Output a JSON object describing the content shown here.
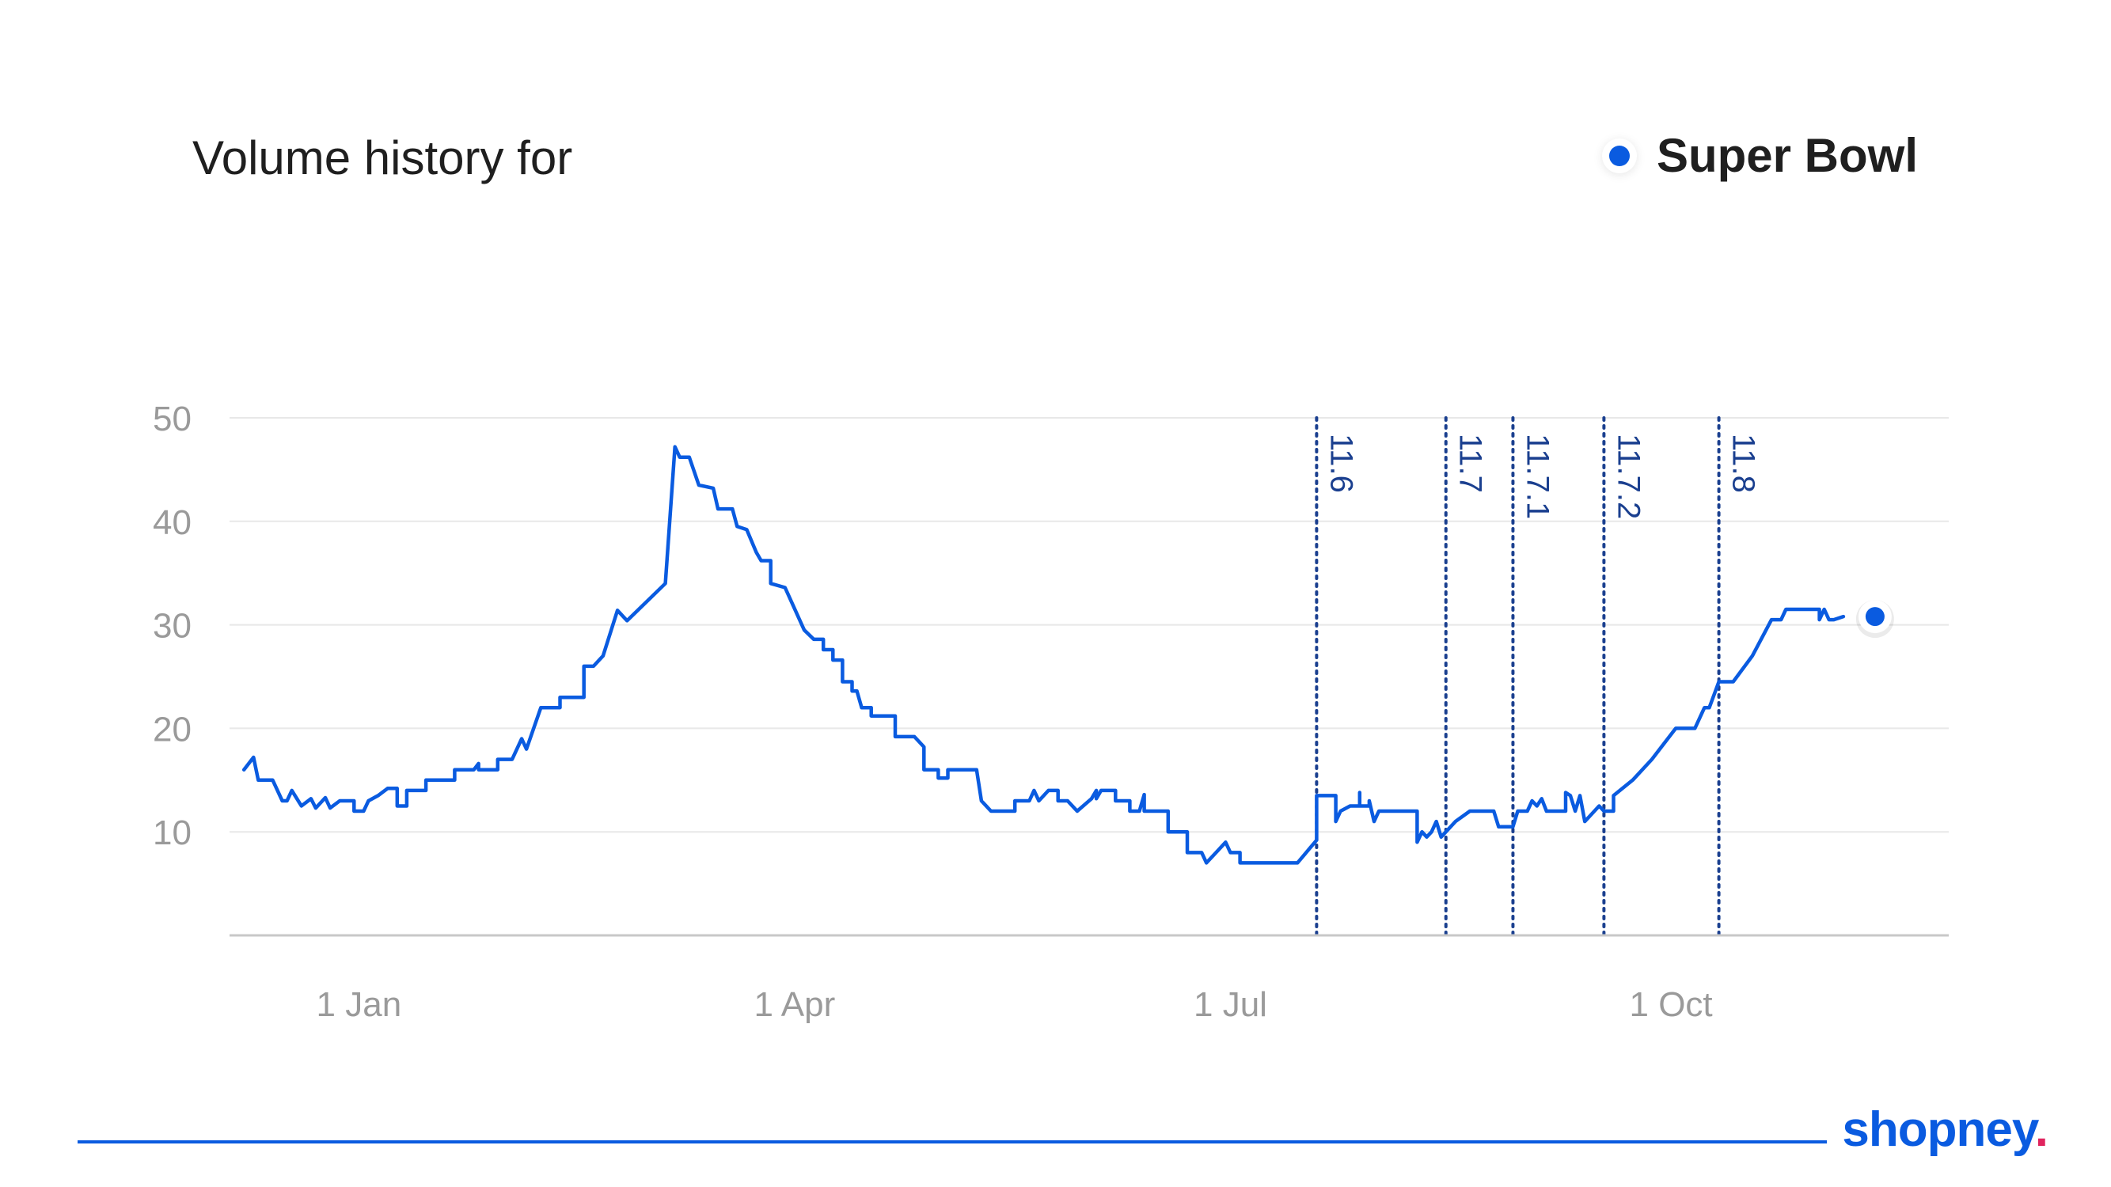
{
  "header": {
    "title": "Volume history for"
  },
  "legend": {
    "label": "Super Bowl",
    "color": "#0a5be0"
  },
  "brand": {
    "name": "shopney",
    "dot": ".",
    "dot_color": "#e0245e"
  },
  "chart_data": {
    "type": "line",
    "title": "Volume history for",
    "xlabel": "",
    "ylabel": "",
    "ylim": [
      0,
      50
    ],
    "y_ticks": [
      10,
      20,
      30,
      40,
      50
    ],
    "grid": true,
    "legend_position": "top-right",
    "x_tick_labels": [
      {
        "label": "1 Jan",
        "date": "2024-01-01"
      },
      {
        "label": "1 Apr",
        "date": "2024-04-01"
      },
      {
        "label": "1 Jul",
        "date": "2024-07-01"
      },
      {
        "label": "1 Oct",
        "date": "2024-10-01"
      }
    ],
    "xlim": [
      "2023-12-05",
      "2024-11-28"
    ],
    "annotations": [
      {
        "label": "11.6",
        "date": "2024-07-19"
      },
      {
        "label": "11.7",
        "date": "2024-08-15"
      },
      {
        "label": "11.7.1",
        "date": "2024-08-29"
      },
      {
        "label": "11.7.2",
        "date": "2024-09-17"
      },
      {
        "label": "11.8",
        "date": "2024-10-11"
      }
    ],
    "series": [
      {
        "name": "Super Bowl",
        "color": "#0a5be0",
        "last_point_marker": true,
        "points": [
          [
            "2023-12-08",
            16
          ],
          [
            "2023-12-10",
            17.2
          ],
          [
            "2023-12-11",
            15
          ],
          [
            "2023-12-14",
            15
          ],
          [
            "2023-12-16",
            13
          ],
          [
            "2023-12-17",
            13
          ],
          [
            "2023-12-18",
            14
          ],
          [
            "2023-12-20",
            12.5
          ],
          [
            "2023-12-22",
            13.2
          ],
          [
            "2023-12-23",
            12.3
          ],
          [
            "2023-12-25",
            13.3
          ],
          [
            "2023-12-26",
            12.3
          ],
          [
            "2023-12-28",
            13
          ],
          [
            "2023-12-31",
            13
          ],
          [
            "2023-12-31",
            12
          ],
          [
            "2024-01-02",
            12
          ],
          [
            "2024-01-03",
            13
          ],
          [
            "2024-01-05",
            13.5
          ],
          [
            "2024-01-07",
            14.2
          ],
          [
            "2024-01-09",
            14.2
          ],
          [
            "2024-01-09",
            12.5
          ],
          [
            "2024-01-11",
            12.5
          ],
          [
            "2024-01-11",
            14
          ],
          [
            "2024-01-15",
            14
          ],
          [
            "2024-01-15",
            15
          ],
          [
            "2024-01-21",
            15
          ],
          [
            "2024-01-21",
            16
          ],
          [
            "2024-01-25",
            16
          ],
          [
            "2024-01-26",
            16.6
          ],
          [
            "2024-01-26",
            16
          ],
          [
            "2024-01-30",
            16
          ],
          [
            "2024-01-30",
            17
          ],
          [
            "2024-02-02",
            17
          ],
          [
            "2024-02-04",
            19
          ],
          [
            "2024-02-05",
            18
          ],
          [
            "2024-02-08",
            22
          ],
          [
            "2024-02-12",
            22
          ],
          [
            "2024-02-12",
            23
          ],
          [
            "2024-02-17",
            23
          ],
          [
            "2024-02-17",
            26
          ],
          [
            "2024-02-19",
            26
          ],
          [
            "2024-02-21",
            27
          ],
          [
            "2024-02-24",
            31.4
          ],
          [
            "2024-02-26",
            30.4
          ],
          [
            "2024-03-05",
            34
          ],
          [
            "2024-03-07",
            47.2
          ],
          [
            "2024-03-08",
            46.2
          ],
          [
            "2024-03-10",
            46.2
          ],
          [
            "2024-03-12",
            43.5
          ],
          [
            "2024-03-15",
            43.2
          ],
          [
            "2024-03-16",
            41.2
          ],
          [
            "2024-03-19",
            41.2
          ],
          [
            "2024-03-20",
            39.5
          ],
          [
            "2024-03-22",
            39.2
          ],
          [
            "2024-03-24",
            37
          ],
          [
            "2024-03-25",
            36.2
          ],
          [
            "2024-03-27",
            36.2
          ],
          [
            "2024-03-27",
            34
          ],
          [
            "2024-03-30",
            33.6
          ],
          [
            "2024-04-03",
            29.5
          ],
          [
            "2024-04-05",
            28.6
          ],
          [
            "2024-04-07",
            28.6
          ],
          [
            "2024-04-07",
            27.6
          ],
          [
            "2024-04-09",
            27.6
          ],
          [
            "2024-04-09",
            26.6
          ],
          [
            "2024-04-11",
            26.6
          ],
          [
            "2024-04-11",
            24.5
          ],
          [
            "2024-04-13",
            24.5
          ],
          [
            "2024-04-13",
            23.6
          ],
          [
            "2024-04-14",
            23.6
          ],
          [
            "2024-04-15",
            22
          ],
          [
            "2024-04-17",
            22
          ],
          [
            "2024-04-17",
            21.2
          ],
          [
            "2024-04-22",
            21.2
          ],
          [
            "2024-04-22",
            19.2
          ],
          [
            "2024-04-26",
            19.2
          ],
          [
            "2024-04-28",
            18.2
          ],
          [
            "2024-04-28",
            16
          ],
          [
            "2024-05-01",
            16
          ],
          [
            "2024-05-01",
            15.2
          ],
          [
            "2024-05-03",
            15.2
          ],
          [
            "2024-05-03",
            16
          ],
          [
            "2024-05-09",
            16
          ],
          [
            "2024-05-10",
            13
          ],
          [
            "2024-05-12",
            12
          ],
          [
            "2024-05-17",
            12
          ],
          [
            "2024-05-17",
            13
          ],
          [
            "2024-05-20",
            13
          ],
          [
            "2024-05-21",
            14
          ],
          [
            "2024-05-22",
            13
          ],
          [
            "2024-05-24",
            14
          ],
          [
            "2024-05-26",
            14
          ],
          [
            "2024-05-26",
            13
          ],
          [
            "2024-05-28",
            13
          ],
          [
            "2024-05-30",
            12
          ],
          [
            "2024-06-02",
            13.2
          ],
          [
            "2024-06-03",
            14
          ],
          [
            "2024-06-03",
            13.2
          ],
          [
            "2024-06-04",
            14
          ],
          [
            "2024-06-07",
            14
          ],
          [
            "2024-06-07",
            13
          ],
          [
            "2024-06-10",
            13
          ],
          [
            "2024-06-10",
            12
          ],
          [
            "2024-06-12",
            12
          ],
          [
            "2024-06-13",
            13.6
          ],
          [
            "2024-06-13",
            12
          ],
          [
            "2024-06-18",
            12
          ],
          [
            "2024-06-18",
            10
          ],
          [
            "2024-06-22",
            10
          ],
          [
            "2024-06-22",
            8
          ],
          [
            "2024-06-25",
            8
          ],
          [
            "2024-06-26",
            7
          ],
          [
            "2024-06-28",
            8
          ],
          [
            "2024-06-30",
            9
          ],
          [
            "2024-07-01",
            8
          ],
          [
            "2024-07-03",
            8
          ],
          [
            "2024-07-03",
            7
          ],
          [
            "2024-07-15",
            7
          ],
          [
            "2024-07-19",
            9.2
          ],
          [
            "2024-07-19",
            13.5
          ],
          [
            "2024-07-23",
            13.5
          ],
          [
            "2024-07-23",
            11
          ],
          [
            "2024-07-24",
            12
          ],
          [
            "2024-07-26",
            12.5
          ],
          [
            "2024-07-28",
            12.5
          ],
          [
            "2024-07-28",
            13.8
          ],
          [
            "2024-07-28",
            12.5
          ],
          [
            "2024-07-30",
            12.5
          ],
          [
            "2024-07-30",
            13
          ],
          [
            "2024-07-31",
            11
          ],
          [
            "2024-08-01",
            12
          ],
          [
            "2024-08-09",
            12
          ],
          [
            "2024-08-09",
            9
          ],
          [
            "2024-08-10",
            10
          ],
          [
            "2024-08-11",
            9.5
          ],
          [
            "2024-08-12",
            10
          ],
          [
            "2024-08-13",
            11
          ],
          [
            "2024-08-14",
            9.5
          ],
          [
            "2024-08-17",
            11
          ],
          [
            "2024-08-20",
            12
          ],
          [
            "2024-08-25",
            12
          ],
          [
            "2024-08-26",
            10.5
          ],
          [
            "2024-08-29",
            10.5
          ],
          [
            "2024-08-30",
            12
          ],
          [
            "2024-09-01",
            12
          ],
          [
            "2024-09-02",
            13
          ],
          [
            "2024-09-03",
            12.5
          ],
          [
            "2024-09-04",
            13.2
          ],
          [
            "2024-09-05",
            12
          ],
          [
            "2024-09-09",
            12
          ],
          [
            "2024-09-09",
            13.8
          ],
          [
            "2024-09-10",
            13.5
          ],
          [
            "2024-09-11",
            12
          ],
          [
            "2024-09-12",
            13.5
          ],
          [
            "2024-09-13",
            11
          ],
          [
            "2024-09-14",
            11.5
          ],
          [
            "2024-09-16",
            12.5
          ],
          [
            "2024-09-17",
            12
          ],
          [
            "2024-09-19",
            12
          ],
          [
            "2024-09-19",
            13.5
          ],
          [
            "2024-09-23",
            15
          ],
          [
            "2024-09-27",
            17
          ],
          [
            "2024-10-02",
            20
          ],
          [
            "2024-10-06",
            20
          ],
          [
            "2024-10-08",
            22
          ],
          [
            "2024-10-09",
            22
          ],
          [
            "2024-10-11",
            24.5
          ],
          [
            "2024-10-14",
            24.5
          ],
          [
            "2024-10-18",
            27
          ],
          [
            "2024-10-22",
            30.5
          ],
          [
            "2024-10-24",
            30.5
          ],
          [
            "2024-10-25",
            31.5
          ],
          [
            "2024-11-01",
            31.5
          ],
          [
            "2024-11-01",
            30.5
          ],
          [
            "2024-11-02",
            31.5
          ],
          [
            "2024-11-03",
            30.5
          ],
          [
            "2024-11-04",
            30.5
          ],
          [
            "2024-11-06",
            30.8
          ]
        ]
      }
    ]
  }
}
